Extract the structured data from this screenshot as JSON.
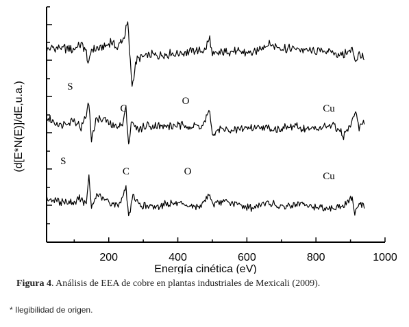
{
  "chart_data": {
    "type": "line",
    "xlabel": "Energía cinética (eV)",
    "ylabel": "(d[E*N(E)]/dE,u.a.)",
    "xlim": [
      20,
      1000
    ],
    "xticks": [
      200,
      400,
      600,
      800,
      1000
    ],
    "grid": false,
    "y_tick_labels_shown": false,
    "peak_labels": [
      {
        "text": "S",
        "x": 80,
        "row": 1
      },
      {
        "text": "C",
        "x": 233,
        "row": 1
      },
      {
        "text": "O",
        "x": 412,
        "row": 1
      },
      {
        "text": "Cu",
        "x": 820,
        "row": 1
      },
      {
        "text": "S",
        "x": 60,
        "row": 2
      },
      {
        "text": "C",
        "x": 240,
        "row": 2
      },
      {
        "text": "O",
        "x": 418,
        "row": 2
      },
      {
        "text": "Cu",
        "x": 820,
        "row": 2
      }
    ],
    "series": [
      {
        "x_range": [
          20,
          940
        ],
        "points": [
          [
            20,
            0.2
          ],
          [
            60,
            0.3
          ],
          [
            95,
            0.2
          ],
          [
            120,
            0.5
          ],
          [
            135,
            0.1
          ],
          [
            142,
            -0.6
          ],
          [
            150,
            0.3
          ],
          [
            175,
            0.2
          ],
          [
            205,
            0.6
          ],
          [
            225,
            0.3
          ],
          [
            245,
            0.9
          ],
          [
            255,
            1.6
          ],
          [
            262,
            -0.4
          ],
          [
            268,
            -1.7
          ],
          [
            280,
            -0.4
          ],
          [
            300,
            -0.1
          ],
          [
            350,
            -0.1
          ],
          [
            400,
            0.0
          ],
          [
            445,
            0.1
          ],
          [
            480,
            0.2
          ],
          [
            492,
            0.8
          ],
          [
            500,
            -0.1
          ],
          [
            520,
            0.0
          ],
          [
            560,
            0.1
          ],
          [
            620,
            0.0
          ],
          [
            660,
            0.5
          ],
          [
            700,
            0.3
          ],
          [
            760,
            0.2
          ],
          [
            830,
            0.1
          ],
          [
            880,
            -0.1
          ],
          [
            905,
            0.2
          ],
          [
            915,
            -0.5
          ],
          [
            925,
            0.0
          ],
          [
            940,
            -0.3
          ]
        ]
      },
      {
        "x_range": [
          20,
          940
        ],
        "points": [
          [
            20,
            0.2
          ],
          [
            60,
            -0.2
          ],
          [
            100,
            0.1
          ],
          [
            120,
            -0.3
          ],
          [
            135,
            0.4
          ],
          [
            142,
            1.2
          ],
          [
            150,
            -1.0
          ],
          [
            165,
            0.2
          ],
          [
            190,
            0.1
          ],
          [
            215,
            -0.3
          ],
          [
            240,
            -0.2
          ],
          [
            250,
            0.9
          ],
          [
            258,
            -1.5
          ],
          [
            265,
            0.0
          ],
          [
            280,
            -0.4
          ],
          [
            320,
            -0.2
          ],
          [
            360,
            -0.3
          ],
          [
            420,
            -0.2
          ],
          [
            470,
            -0.3
          ],
          [
            492,
            0.6
          ],
          [
            500,
            -0.8
          ],
          [
            520,
            -0.4
          ],
          [
            560,
            -0.5
          ],
          [
            620,
            -0.3
          ],
          [
            680,
            -0.4
          ],
          [
            740,
            -0.3
          ],
          [
            800,
            -0.4
          ],
          [
            850,
            -0.2
          ],
          [
            880,
            -0.8
          ],
          [
            905,
            0.0
          ],
          [
            915,
            0.6
          ],
          [
            925,
            -0.3
          ],
          [
            940,
            0.0
          ]
        ]
      },
      {
        "x_range": [
          20,
          940
        ],
        "points": [
          [
            20,
            0.0
          ],
          [
            60,
            -0.2
          ],
          [
            100,
            -0.3
          ],
          [
            120,
            0.1
          ],
          [
            135,
            -0.5
          ],
          [
            142,
            1.4
          ],
          [
            150,
            -0.6
          ],
          [
            165,
            0.2
          ],
          [
            200,
            -0.2
          ],
          [
            230,
            -0.4
          ],
          [
            250,
            0.7
          ],
          [
            258,
            -1.2
          ],
          [
            268,
            0.1
          ],
          [
            290,
            -0.4
          ],
          [
            330,
            -0.5
          ],
          [
            380,
            -0.3
          ],
          [
            430,
            -0.5
          ],
          [
            470,
            -0.4
          ],
          [
            492,
            0.3
          ],
          [
            500,
            -0.4
          ],
          [
            540,
            -0.2
          ],
          [
            580,
            -0.4
          ],
          [
            620,
            -0.6
          ],
          [
            650,
            -0.2
          ],
          [
            700,
            -0.5
          ],
          [
            760,
            -0.4
          ],
          [
            820,
            -0.6
          ],
          [
            880,
            -0.5
          ],
          [
            905,
            0.1
          ],
          [
            912,
            -0.9
          ],
          [
            925,
            -0.3
          ],
          [
            940,
            -0.5
          ]
        ]
      }
    ]
  },
  "caption": {
    "label": "Figura 4",
    "text": ". Análisis de EEA de cobre en plantas industriales de Mexicali (2009)."
  },
  "note": "* Ilegibilidad de origen."
}
